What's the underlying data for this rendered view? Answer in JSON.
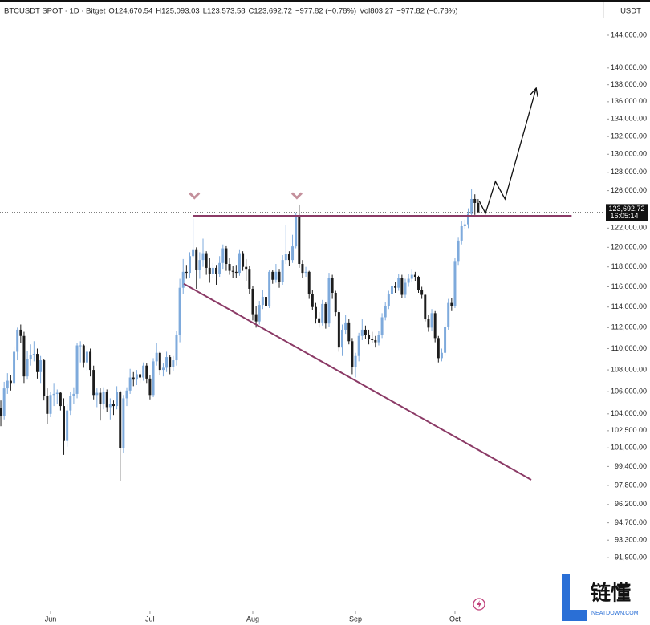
{
  "chart_data": {
    "type": "candlestick",
    "header": [
      "BTCUSDT SPOT · 1D · Bitget",
      "O124,670.54",
      "H125,093.03",
      "L123,573.58",
      "C123,692.72",
      "−977.82 (−0.78%)",
      "Vol803.27",
      "−977.82 (−0.78%)"
    ],
    "currency": "USDT",
    "last_price_label": "123,692.72",
    "countdown_label": "16:05:14",
    "log_scale": true,
    "up_color": "#7eaadc",
    "down_color": "#1c1c1c",
    "ylim": [
      89100,
      146200
    ],
    "xlim": [
      -0.25,
      180.1
    ],
    "yticks": [
      {
        "value": 144000,
        "label": "144,000.00"
      },
      {
        "value": 140000,
        "label": "140,000.00"
      },
      {
        "value": 138000,
        "label": "138,000.00"
      },
      {
        "value": 136000,
        "label": "136,000.00"
      },
      {
        "value": 134000,
        "label": "134,000.00"
      },
      {
        "value": 132000,
        "label": "132,000.00"
      },
      {
        "value": 130000,
        "label": "130,000.00"
      },
      {
        "value": 128000,
        "label": "128,000.00"
      },
      {
        "value": 126000,
        "label": "126,000.00"
      },
      {
        "value": 122000,
        "label": "122,000.00"
      },
      {
        "value": 120000,
        "label": "120,000.00"
      },
      {
        "value": 118000,
        "label": "118,000.00"
      },
      {
        "value": 116000,
        "label": "116,000.00"
      },
      {
        "value": 114000,
        "label": "114,000.00"
      },
      {
        "value": 112000,
        "label": "112,000.00"
      },
      {
        "value": 110000,
        "label": "110,000.00"
      },
      {
        "value": 108000,
        "label": "108,000.00"
      },
      {
        "value": 106000,
        "label": "106,000.00"
      },
      {
        "value": 104000,
        "label": "104,000.00"
      },
      {
        "value": 102500,
        "label": "102,500.00"
      },
      {
        "value": 101000,
        "label": "101,000.00"
      },
      {
        "value": 99400,
        "label": "99,400.00"
      },
      {
        "value": 97800,
        "label": "97,800.00"
      },
      {
        "value": 96200,
        "label": "96,200.00"
      },
      {
        "value": 94700,
        "label": "94,700.00"
      },
      {
        "value": 93300,
        "label": "93,300.00"
      },
      {
        "value": 91900,
        "label": "91,900.00"
      }
    ],
    "xticks": [
      {
        "value": 15,
        "label": "Jun"
      },
      {
        "value": 45,
        "label": "Jul"
      },
      {
        "value": 76,
        "label": "Aug"
      },
      {
        "value": 107,
        "label": "Sep"
      },
      {
        "value": 137,
        "label": "Oct"
      }
    ],
    "candles": [
      [
        104500,
        105200,
        102900,
        103800
      ],
      [
        103800,
        106900,
        103500,
        106300
      ],
      [
        106300,
        107700,
        105800,
        107000
      ],
      [
        107000,
        107500,
        106100,
        106800
      ],
      [
        106800,
        110200,
        106500,
        109700
      ],
      [
        109700,
        112000,
        108900,
        111800
      ],
      [
        111800,
        112300,
        110500,
        111200
      ],
      [
        111200,
        111600,
        106800,
        107400
      ],
      [
        107400,
        109800,
        107100,
        109000
      ],
      [
        109000,
        110400,
        108400,
        109400
      ],
      [
        109400,
        110700,
        108800,
        109500
      ],
      [
        109500,
        110000,
        107200,
        107800
      ],
      [
        107800,
        109300,
        106800,
        108900
      ],
      [
        108900,
        109000,
        105200,
        105600
      ],
      [
        105600,
        106300,
        103100,
        104000
      ],
      [
        104000,
        106000,
        103700,
        105700
      ],
      [
        105700,
        106800,
        104700,
        105800
      ],
      [
        105800,
        106200,
        104900,
        105900
      ],
      [
        105900,
        106000,
        104300,
        104700
      ],
      [
        104700,
        105400,
        100400,
        101600
      ],
      [
        101600,
        104900,
        101100,
        104300
      ],
      [
        104300,
        106000,
        103900,
        105600
      ],
      [
        105600,
        106400,
        104900,
        105800
      ],
      [
        105800,
        110500,
        105400,
        110300
      ],
      [
        110300,
        110700,
        108700,
        110300
      ],
      [
        110300,
        110400,
        108200,
        108700
      ],
      [
        108700,
        110300,
        107900,
        109700
      ],
      [
        109700,
        110000,
        107400,
        108000
      ],
      [
        108000,
        108400,
        105300,
        105700
      ],
      [
        105700,
        106300,
        104600,
        105900
      ],
      [
        105900,
        106300,
        103400,
        104900
      ],
      [
        104900,
        106400,
        104400,
        106000
      ],
      [
        106000,
        106200,
        104200,
        104600
      ],
      [
        104600,
        105400,
        103500,
        104900
      ],
      [
        104900,
        105200,
        103900,
        104700
      ],
      [
        104700,
        106500,
        104400,
        106000
      ],
      [
        106000,
        106100,
        98200,
        101000
      ],
      [
        101000,
        105700,
        100600,
        105400
      ],
      [
        105400,
        106400,
        104700,
        106100
      ],
      [
        106100,
        108100,
        105800,
        107300
      ],
      [
        107300,
        107800,
        106500,
        107100
      ],
      [
        107100,
        108000,
        106600,
        107600
      ],
      [
        107600,
        107900,
        106800,
        107300
      ],
      [
        107300,
        108700,
        107000,
        108400
      ],
      [
        108400,
        108600,
        106800,
        107200
      ],
      [
        107200,
        107500,
        105300,
        105700
      ],
      [
        105700,
        109100,
        105500,
        108800
      ],
      [
        108800,
        110500,
        108400,
        109600
      ],
      [
        109600,
        109700,
        107500,
        108000
      ],
      [
        108000,
        108600,
        107400,
        108200
      ],
      [
        108200,
        109700,
        107800,
        109200
      ],
      [
        109200,
        109400,
        107600,
        108300
      ],
      [
        108300,
        109300,
        107900,
        108900
      ],
      [
        108900,
        111700,
        108400,
        111300
      ],
      [
        111300,
        116800,
        110600,
        115900
      ],
      [
        115900,
        118800,
        115300,
        117500
      ],
      [
        117500,
        118200,
        116800,
        117400
      ],
      [
        117400,
        119500,
        116900,
        119100
      ],
      [
        119100,
        123000,
        118900,
        119800
      ],
      [
        119800,
        120000,
        115800,
        117700
      ],
      [
        117700,
        119500,
        116800,
        118700
      ],
      [
        118700,
        120900,
        118000,
        119400
      ],
      [
        119400,
        119600,
        117200,
        117900
      ],
      [
        117900,
        118900,
        116400,
        117300
      ],
      [
        117300,
        118400,
        116900,
        117900
      ],
      [
        117900,
        118200,
        116200,
        117300
      ],
      [
        117300,
        119100,
        117000,
        118400
      ],
      [
        118400,
        120300,
        117800,
        119900
      ],
      [
        119900,
        120200,
        117600,
        118300
      ],
      [
        118300,
        118900,
        117200,
        117600
      ],
      [
        117600,
        118100,
        116900,
        117500
      ],
      [
        117500,
        118200,
        116900,
        117400
      ],
      [
        117400,
        119800,
        117100,
        119400
      ],
      [
        119400,
        119600,
        117600,
        118000
      ],
      [
        118000,
        118800,
        116600,
        117800
      ],
      [
        117800,
        118100,
        115300,
        115800
      ],
      [
        115800,
        116100,
        112700,
        113300
      ],
      [
        113300,
        114100,
        112000,
        112600
      ],
      [
        112600,
        114600,
        112300,
        114200
      ],
      [
        114200,
        115700,
        113800,
        115000
      ],
      [
        115000,
        115500,
        113600,
        114100
      ],
      [
        114100,
        117700,
        113900,
        117500
      ],
      [
        117500,
        117700,
        116300,
        116700
      ],
      [
        116700,
        118300,
        116400,
        117500
      ],
      [
        117500,
        117800,
        115900,
        116500
      ],
      [
        116500,
        119200,
        116200,
        118700
      ],
      [
        118700,
        122300,
        118300,
        119300
      ],
      [
        119300,
        119600,
        118100,
        118700
      ],
      [
        118700,
        121300,
        118400,
        120100
      ],
      [
        120100,
        123600,
        119900,
        123300
      ],
      [
        123300,
        124500,
        117900,
        118300
      ],
      [
        118300,
        118700,
        116900,
        117400
      ],
      [
        117400,
        118000,
        117000,
        117500
      ],
      [
        117500,
        117600,
        114800,
        115300
      ],
      [
        115300,
        115700,
        113700,
        114000
      ],
      [
        114000,
        114400,
        112400,
        112900
      ],
      [
        112900,
        113500,
        112000,
        112500
      ],
      [
        112500,
        114700,
        112200,
        114300
      ],
      [
        114300,
        114500,
        111900,
        112400
      ],
      [
        112400,
        117400,
        112100,
        116900
      ],
      [
        116900,
        117200,
        114800,
        115400
      ],
      [
        115400,
        115600,
        113100,
        113500
      ],
      [
        113500,
        113700,
        109700,
        110100
      ],
      [
        110100,
        112300,
        109300,
        111800
      ],
      [
        111800,
        113200,
        111400,
        112500
      ],
      [
        112500,
        112800,
        110400,
        110700
      ],
      [
        110700,
        111000,
        107600,
        108300
      ],
      [
        108300,
        109600,
        107300,
        109300
      ],
      [
        109300,
        111500,
        108800,
        111200
      ],
      [
        111200,
        112800,
        110800,
        111800
      ],
      [
        111800,
        112200,
        110900,
        111300
      ],
      [
        111300,
        111800,
        110400,
        110900
      ],
      [
        110900,
        111600,
        110500,
        110800
      ],
      [
        110800,
        111200,
        110100,
        110600
      ],
      [
        110600,
        111700,
        110300,
        111300
      ],
      [
        111300,
        113400,
        111000,
        113000
      ],
      [
        113000,
        114500,
        112700,
        114100
      ],
      [
        114100,
        115600,
        113800,
        115300
      ],
      [
        115300,
        116400,
        114900,
        116100
      ],
      [
        116100,
        116500,
        115400,
        115900
      ],
      [
        115900,
        117300,
        115600,
        116900
      ],
      [
        116900,
        117200,
        114900,
        115200
      ],
      [
        115200,
        116800,
        114900,
        116400
      ],
      [
        116400,
        117300,
        116000,
        116800
      ],
      [
        116800,
        117800,
        116500,
        117200
      ],
      [
        117200,
        117500,
        116600,
        117000
      ],
      [
        117000,
        117100,
        115400,
        115700
      ],
      [
        115700,
        116000,
        114800,
        115200
      ],
      [
        115200,
        115300,
        112600,
        112800
      ],
      [
        112800,
        113200,
        111600,
        112000
      ],
      [
        112000,
        113800,
        111700,
        113400
      ],
      [
        113400,
        113600,
        110600,
        111000
      ],
      [
        111000,
        111200,
        108700,
        109100
      ],
      [
        109100,
        110000,
        108800,
        109600
      ],
      [
        109600,
        112400,
        109300,
        112100
      ],
      [
        112100,
        114800,
        111800,
        114400
      ],
      [
        114400,
        114900,
        113600,
        114100
      ],
      [
        114100,
        118900,
        113900,
        118600
      ],
      [
        118600,
        121000,
        118200,
        120700
      ],
      [
        120700,
        122700,
        120300,
        122200
      ],
      [
        122200,
        122900,
        121900,
        122400
      ],
      [
        122400,
        124100,
        122000,
        123500
      ],
      [
        123500,
        126200,
        123200,
        125100
      ],
      [
        125100,
        125600,
        123400,
        124670.54
      ],
      [
        124670.54,
        125093.03,
        123573.58,
        123692.72
      ]
    ],
    "drawings": {
      "line_color": "#8b3a66",
      "marker_color": "#c4909c",
      "arrow_color": "#111111",
      "resistance": [
        [
          57.9,
          123300
        ],
        [
          172.2,
          123300
        ]
      ],
      "support": [
        [
          55.2,
          116300
        ],
        [
          160,
          98270
        ]
      ],
      "arrow": [
        [
          144.3,
          124900
        ],
        [
          146.2,
          123560
        ],
        [
          149.2,
          127000
        ],
        [
          152.1,
          125100
        ],
        [
          161.5,
          137600
        ]
      ],
      "markers": [
        [
          58.4,
          125400
        ],
        [
          89.3,
          125400
        ]
      ]
    },
    "watermark": {
      "title": "链懂",
      "subtitle": "NEATDOWN.COM"
    }
  }
}
